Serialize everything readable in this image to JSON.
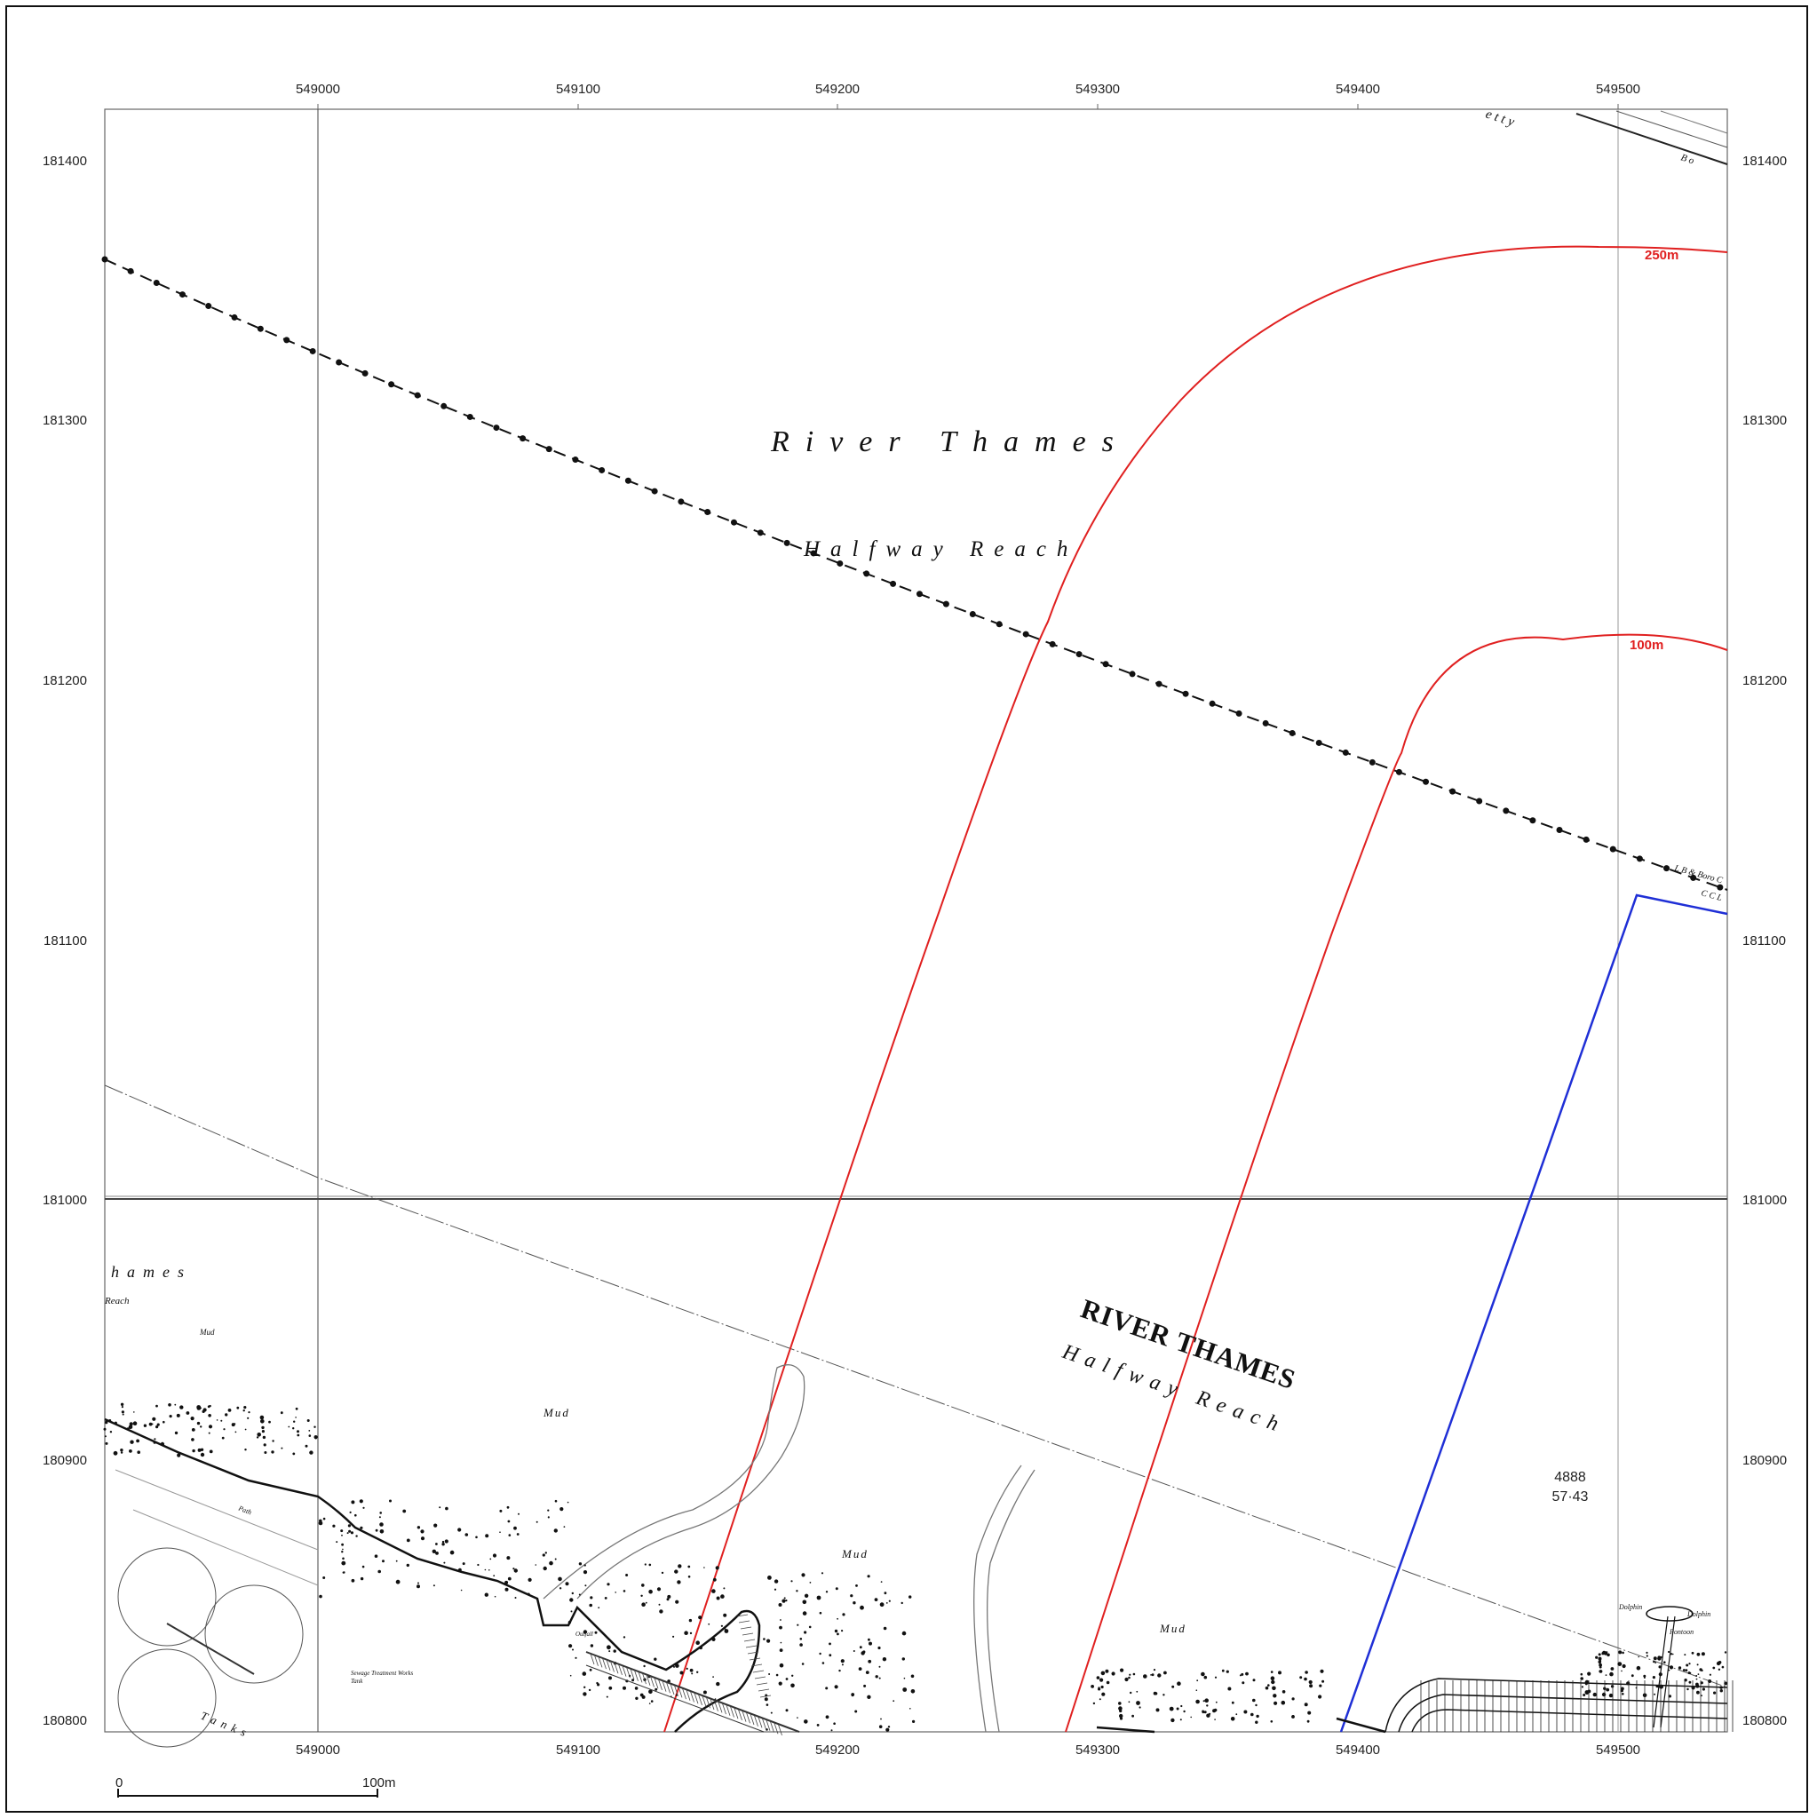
{
  "map": {
    "x_ticks": [
      "549000",
      "549100",
      "549200",
      "549300",
      "549400",
      "549500"
    ],
    "y_ticks": [
      "181400",
      "181300",
      "181200",
      "181100",
      "181000",
      "180900",
      "180800"
    ],
    "buffer_labels": {
      "outer": "250m",
      "inner": "100m"
    },
    "river_labels": {
      "title_upper": "River Thames",
      "subtitle_upper": "Halfway Reach",
      "title_lower": "RIVER THAMES",
      "subtitle_lower": "Halfway Reach",
      "title_left_fragment": "hames",
      "subtitle_left_fragment": "Reach"
    },
    "mud_labels": [
      "Mud",
      "Mud",
      "Mud",
      "Mud"
    ],
    "parcel": {
      "number": "4888",
      "area": "57·43"
    },
    "pontoon_labels": {
      "dolphin_left": "Dolphin",
      "dolphin_right": "Dolphin",
      "pontoon": "Pontoon"
    },
    "boundary_labels": {
      "line1": "L B & Boro C",
      "line2": "C C L"
    },
    "top_fragment_1": "e t t y",
    "top_fragment_2": "B o",
    "misc_labels": {
      "path": "Path",
      "tank": "Tank",
      "works": "Sewage Treatment Works",
      "outfall": "Outfall",
      "tanks": "Tanks"
    },
    "scale_bar": {
      "start": "0",
      "end": "100m"
    },
    "colors": {
      "buffer": "#e02020",
      "site": "#1f2fd6",
      "grid": "#333333"
    }
  }
}
